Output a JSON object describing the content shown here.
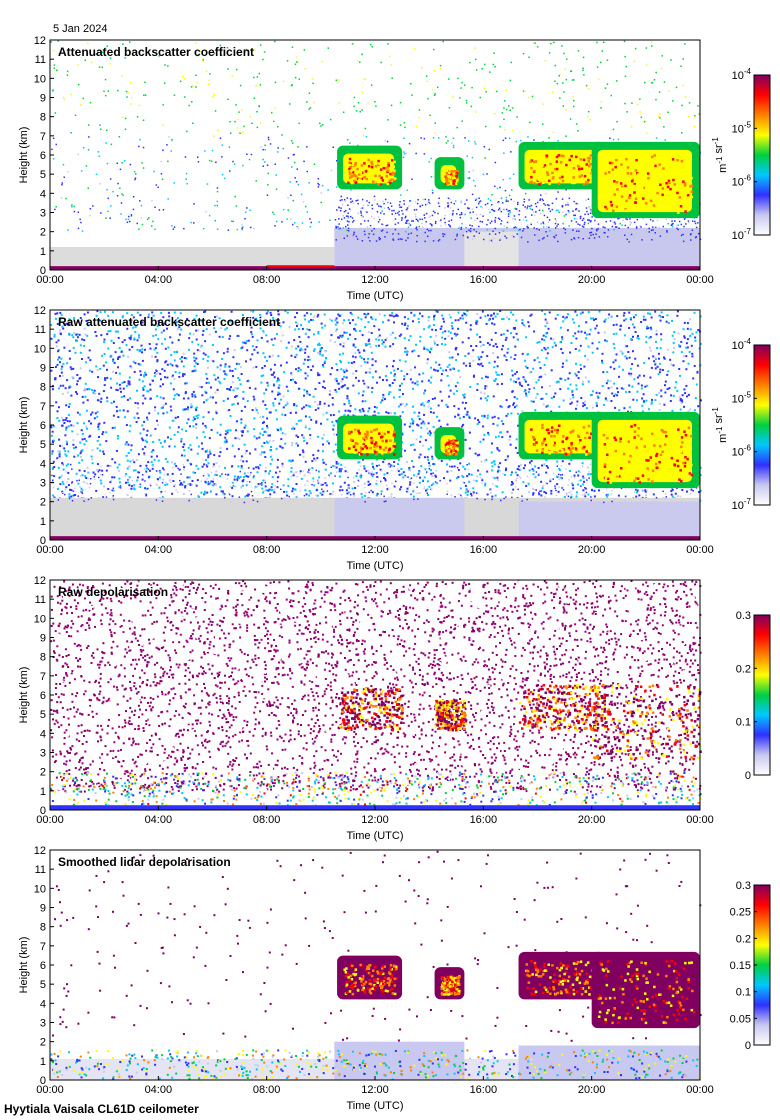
{
  "date_label": "5 Jan 2024",
  "footer": "Hyytiala Vaisala CL61D ceilometer",
  "chart_data": [
    {
      "type": "heatmap",
      "title": "Attenuated backscatter coefficient",
      "xlabel": "Time (UTC)",
      "ylabel": "Height (km)",
      "x_ticks": [
        "00:00",
        "04:00",
        "08:00",
        "12:00",
        "16:00",
        "20:00",
        "00:00"
      ],
      "xlim_hours": [
        0,
        24
      ],
      "y_ticks": [
        0,
        1,
        2,
        3,
        4,
        5,
        6,
        7,
        8,
        9,
        10,
        11,
        12
      ],
      "ylim": [
        0,
        12
      ],
      "colorbar": {
        "scale": "log",
        "range": [
          1e-07,
          0.0001
        ],
        "tick_labels": [
          "10^-4",
          "10^-5",
          "10^-6",
          "10^-7"
        ],
        "units": "m^-1 sr^-1",
        "colormap": [
          "#ffffff",
          "#c8c8f0",
          "#3030ff",
          "#00c8ff",
          "#00d040",
          "#ffff00",
          "#ff8000",
          "#ff0000",
          "#800060"
        ]
      },
      "features": [
        {
          "name": "cloud",
          "time_hours": [
            10.5,
            13.0
          ],
          "height_km": [
            4.0,
            6.5
          ]
        },
        {
          "name": "cloud",
          "time_hours": [
            14.2,
            15.3
          ],
          "height_km": [
            4.0,
            6.0
          ]
        },
        {
          "name": "cloud",
          "time_hours": [
            17.3,
            24.0
          ],
          "height_km": [
            2.5,
            7.0
          ]
        },
        {
          "name": "boundary-layer",
          "time_hours": [
            0,
            24
          ],
          "height_km": [
            0,
            1.5
          ]
        }
      ]
    },
    {
      "type": "heatmap",
      "title": "Raw attenuated backscatter coefficient",
      "xlabel": "Time (UTC)",
      "ylabel": "Height (km)",
      "x_ticks": [
        "00:00",
        "04:00",
        "08:00",
        "12:00",
        "16:00",
        "20:00",
        "00:00"
      ],
      "xlim_hours": [
        0,
        24
      ],
      "y_ticks": [
        0,
        1,
        2,
        3,
        4,
        5,
        6,
        7,
        8,
        9,
        10,
        11,
        12
      ],
      "ylim": [
        0,
        12
      ],
      "colorbar": {
        "scale": "log",
        "range": [
          1e-07,
          0.0001
        ],
        "tick_labels": [
          "10^-4",
          "10^-5",
          "10^-6",
          "10^-7"
        ],
        "units": "m^-1 sr^-1",
        "colormap": [
          "#ffffff",
          "#c8c8f0",
          "#3030ff",
          "#00c8ff",
          "#00d040",
          "#ffff00",
          "#ff8000",
          "#ff0000",
          "#800060"
        ]
      }
    },
    {
      "type": "heatmap",
      "title": "Raw depolarisation",
      "xlabel": "Time (UTC)",
      "ylabel": "Height (km)",
      "x_ticks": [
        "00:00",
        "04:00",
        "08:00",
        "12:00",
        "16:00",
        "20:00",
        "00:00"
      ],
      "xlim_hours": [
        0,
        24
      ],
      "y_ticks": [
        0,
        1,
        2,
        3,
        4,
        5,
        6,
        7,
        8,
        9,
        10,
        11,
        12
      ],
      "ylim": [
        0,
        12
      ],
      "colorbar": {
        "scale": "linear",
        "range": [
          0,
          0.3
        ],
        "tick_labels": [
          "0.3",
          "0.2",
          "0.1",
          "0"
        ],
        "units": "",
        "colormap": [
          "#ffffff",
          "#c8c8f0",
          "#3030ff",
          "#00c8ff",
          "#00d040",
          "#ffff00",
          "#ff8000",
          "#ff0000",
          "#800060"
        ]
      }
    },
    {
      "type": "heatmap",
      "title": "Smoothed lidar depolarisation",
      "xlabel": "Time (UTC)",
      "ylabel": "Height (km)",
      "x_ticks": [
        "00:00",
        "04:00",
        "08:00",
        "12:00",
        "16:00",
        "20:00",
        "00:00"
      ],
      "xlim_hours": [
        0,
        24
      ],
      "y_ticks": [
        0,
        1,
        2,
        3,
        4,
        5,
        6,
        7,
        8,
        9,
        10,
        11,
        12
      ],
      "ylim": [
        0,
        12
      ],
      "colorbar": {
        "scale": "linear",
        "range": [
          0,
          0.3
        ],
        "tick_labels": [
          "0.3",
          "0.25",
          "0.2",
          "0.15",
          "0.1",
          "0.05",
          "0"
        ],
        "units": "",
        "colormap": [
          "#ffffff",
          "#c8c8f0",
          "#3030ff",
          "#00c8ff",
          "#00d040",
          "#ffff00",
          "#ff8000",
          "#ff0000",
          "#800060"
        ]
      }
    }
  ]
}
